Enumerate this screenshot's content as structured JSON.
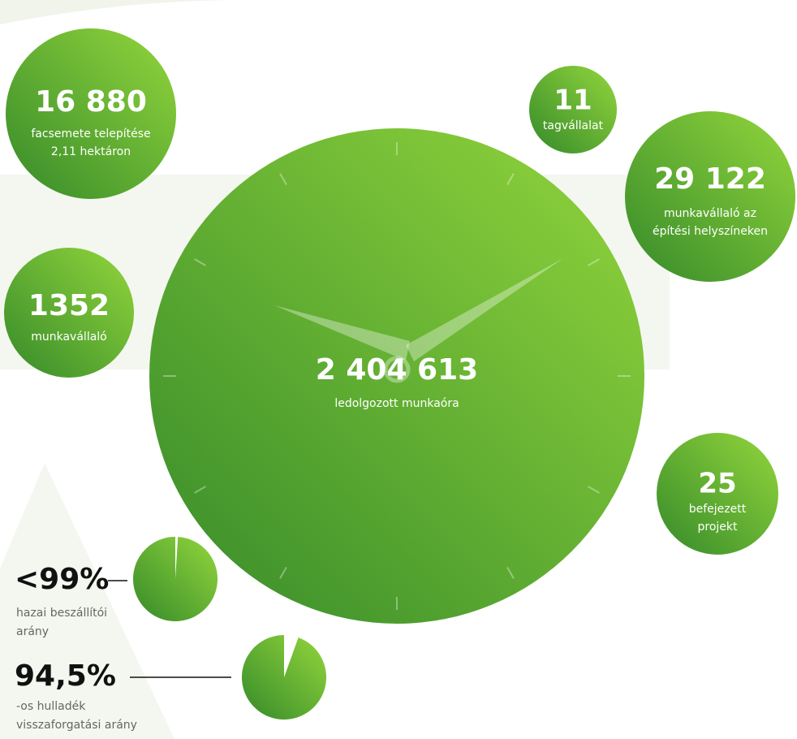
{
  "stats": [
    {
      "value": "16 880",
      "lines": [
        "facsemete telepítése",
        "2,11 hektáron"
      ]
    },
    {
      "value": "11",
      "lines": [
        "tagvállalat"
      ]
    },
    {
      "value": "29 122",
      "lines": [
        "munkavállaló az",
        "építési helyszíneken"
      ]
    },
    {
      "value": "1352",
      "lines": [
        "munkavállaló"
      ]
    },
    {
      "value": "25",
      "lines": [
        "befejezett",
        "projekt"
      ]
    }
  ],
  "center": {
    "value": "2 404 613",
    "lines": [
      "ledolgozott munkaóra"
    ]
  },
  "pies": [
    {
      "value": 99,
      "label": "<99%",
      "lines": [
        "hazai beszállítói",
        "arány"
      ]
    },
    {
      "value": 94.5,
      "label": "94,5%",
      "lines": [
        "-os hulladék",
        "visszaforgatási arány"
      ]
    }
  ]
}
